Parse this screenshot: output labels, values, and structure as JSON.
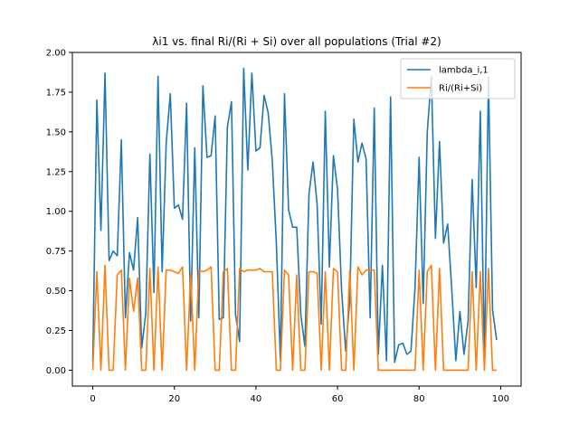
{
  "chart_data": {
    "type": "line",
    "title": "λi1 vs. final Ri/(Ri + Si) over all populations (Trial #2)",
    "xlabel": "",
    "ylabel": "",
    "xlim": [
      -5,
      105
    ],
    "ylim": [
      -0.1,
      2.0
    ],
    "x_ticks": [
      0,
      20,
      40,
      60,
      80,
      100
    ],
    "y_ticks": [
      0.0,
      0.25,
      0.5,
      0.75,
      1.0,
      1.25,
      1.5,
      1.75,
      2.0
    ],
    "x_tick_labels": [
      "0",
      "20",
      "40",
      "60",
      "80",
      "100"
    ],
    "y_tick_labels": [
      "0.00",
      "0.25",
      "0.50",
      "0.75",
      "1.00",
      "1.25",
      "1.50",
      "1.75",
      "2.00"
    ],
    "grid": false,
    "legend_position": "top-right",
    "x": [
      0,
      1,
      2,
      3,
      4,
      5,
      6,
      7,
      8,
      9,
      10,
      11,
      12,
      13,
      14,
      15,
      16,
      17,
      18,
      19,
      20,
      21,
      22,
      23,
      24,
      25,
      26,
      27,
      28,
      29,
      30,
      31,
      32,
      33,
      34,
      35,
      36,
      37,
      38,
      39,
      40,
      41,
      42,
      43,
      44,
      45,
      46,
      47,
      48,
      49,
      50,
      51,
      52,
      53,
      54,
      55,
      56,
      57,
      58,
      59,
      60,
      61,
      62,
      63,
      64,
      65,
      66,
      67,
      68,
      69,
      70,
      71,
      72,
      73,
      74,
      75,
      76,
      77,
      78,
      79,
      80,
      81,
      82,
      83,
      84,
      85,
      86,
      87,
      88,
      89,
      90,
      91,
      92,
      93,
      94,
      95,
      96,
      97,
      98,
      99
    ],
    "series": [
      {
        "name": "lambda_i,1",
        "color": "#1f77b4",
        "values": [
          0.05,
          1.7,
          0.88,
          1.87,
          0.69,
          0.75,
          0.72,
          1.45,
          0.33,
          0.74,
          0.63,
          0.96,
          0.14,
          0.36,
          1.36,
          0.49,
          1.85,
          0.62,
          1.43,
          1.74,
          1.02,
          1.04,
          0.95,
          1.68,
          0.31,
          1.4,
          0.33,
          1.79,
          1.34,
          1.35,
          1.6,
          0.32,
          0.33,
          1.53,
          1.69,
          0.35,
          0.18,
          1.9,
          1.26,
          1.87,
          1.38,
          1.4,
          1.73,
          1.62,
          1.32,
          0.8,
          0.06,
          1.74,
          1.01,
          0.9,
          0.9,
          0.35,
          0.15,
          1.11,
          1.31,
          1.04,
          0.29,
          1.63,
          0.65,
          1.35,
          1.14,
          0.5,
          0.12,
          0.44,
          1.58,
          1.31,
          1.43,
          1.33,
          0.33,
          1.65,
          0.1,
          0.66,
          0.06,
          1.72,
          0.05,
          0.16,
          0.17,
          0.1,
          0.12,
          0.52,
          1.34,
          0.42,
          1.5,
          1.85,
          0.83,
          1.44,
          0.8,
          0.92,
          0.51,
          0.06,
          0.37,
          0.1,
          0.31,
          1.2,
          0.52,
          1.63,
          0.05,
          1.85,
          0.38,
          0.19
        ]
      },
      {
        "name": "Ri/(Ri+Si)",
        "color": "#ff7f0e",
        "values": [
          0.0,
          0.62,
          0.0,
          0.66,
          0.0,
          0.0,
          0.6,
          0.63,
          0.0,
          0.58,
          0.37,
          0.58,
          0.0,
          0.0,
          0.64,
          0.0,
          0.65,
          0.0,
          0.63,
          0.63,
          0.62,
          0.61,
          0.65,
          0.0,
          0.61,
          0.0,
          0.63,
          0.62,
          0.63,
          0.65,
          0.0,
          0.0,
          0.62,
          0.64,
          0.0,
          0.0,
          0.64,
          0.62,
          0.63,
          0.63,
          0.63,
          0.64,
          0.62,
          0.62,
          0.62,
          0.0,
          0.0,
          0.63,
          0.6,
          0.0,
          0.6,
          0.0,
          0.0,
          0.62,
          0.62,
          0.61,
          0.0,
          0.62,
          0.0,
          0.64,
          0.62,
          0.0,
          0.0,
          0.63,
          0.0,
          0.65,
          0.6,
          0.63,
          0.63,
          0.63,
          0.0,
          0.0,
          0.0,
          0.0,
          0.0,
          0.0,
          0.0,
          0.0,
          0.0,
          0.0,
          0.63,
          0.0,
          0.62,
          0.66,
          0.0,
          0.64,
          0.0,
          0.0,
          0.0,
          0.0,
          0.0,
          0.0,
          0.0,
          0.62,
          0.0,
          0.62,
          0.0,
          0.64,
          0.0,
          0.0
        ]
      }
    ]
  }
}
